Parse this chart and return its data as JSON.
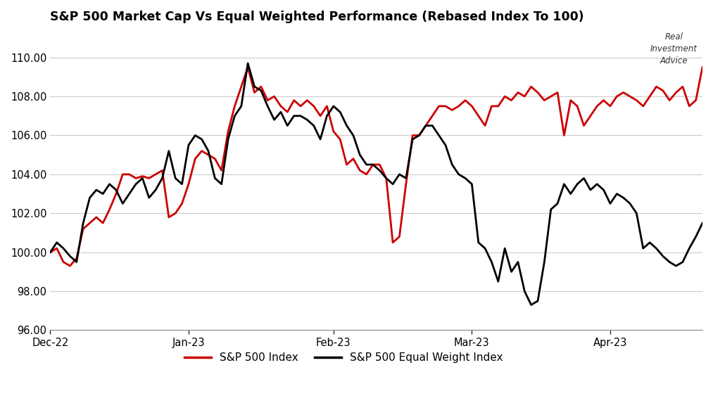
{
  "title": "S&P 500 Market Cap Vs Equal Weighted Performance (Rebased Index To 100)",
  "title_fontsize": 12.5,
  "background_color": "#ffffff",
  "grid_color": "#cccccc",
  "ylim": [
    96.0,
    111.5
  ],
  "yticks": [
    96.0,
    98.0,
    100.0,
    102.0,
    104.0,
    106.0,
    108.0,
    110.0
  ],
  "tick_fontsize": 10.5,
  "sp500_color": "#cc0000",
  "equal_weight_color": "#000000",
  "line_width": 2.0,
  "legend_labels": [
    "S&P 500 Index",
    "S&P 500 Equal Weight Index"
  ],
  "xtick_labels": [
    "Dec-22",
    "Jan-23",
    "Feb-23",
    "Mar-23",
    "Apr-23"
  ],
  "xtick_positions": [
    0,
    21,
    43,
    64,
    85
  ],
  "xlim_end": 99,
  "sp500": [
    100.0,
    100.2,
    99.5,
    99.3,
    99.7,
    101.2,
    101.5,
    101.8,
    101.5,
    102.2,
    103.0,
    104.0,
    104.0,
    103.8,
    103.9,
    103.8,
    104.0,
    104.2,
    101.8,
    102.0,
    102.5,
    103.5,
    104.8,
    105.2,
    105.0,
    104.8,
    104.2,
    106.2,
    107.5,
    108.5,
    109.5,
    108.2,
    108.5,
    107.8,
    108.0,
    107.5,
    107.2,
    107.8,
    107.5,
    107.8,
    107.5,
    107.0,
    107.5,
    106.2,
    105.8,
    104.5,
    104.8,
    104.2,
    104.0,
    104.5,
    104.5,
    103.8,
    100.5,
    100.8,
    103.5,
    106.0,
    106.0,
    106.5,
    107.0,
    107.5,
    107.5,
    107.3,
    107.5,
    107.8,
    107.5,
    107.0,
    106.5,
    107.5,
    107.5,
    108.0,
    107.8,
    108.2,
    108.0,
    108.5,
    108.2,
    107.8,
    108.0,
    108.2,
    106.0,
    107.8,
    107.5,
    106.5,
    107.0,
    107.5,
    107.8,
    107.5,
    108.0,
    108.2,
    108.0,
    107.8,
    107.5,
    108.0,
    108.5,
    108.3,
    107.8,
    108.2,
    108.5,
    107.5,
    107.8,
    109.5
  ],
  "equal_weight": [
    100.0,
    100.5,
    100.2,
    99.8,
    99.5,
    101.5,
    102.8,
    103.2,
    103.0,
    103.5,
    103.2,
    102.5,
    103.0,
    103.5,
    103.8,
    102.8,
    103.2,
    103.8,
    105.2,
    103.8,
    103.5,
    105.5,
    106.0,
    105.8,
    105.2,
    103.8,
    103.5,
    105.8,
    107.0,
    107.5,
    109.7,
    108.5,
    108.3,
    107.5,
    106.8,
    107.2,
    106.5,
    107.0,
    107.0,
    106.8,
    106.5,
    105.8,
    107.0,
    107.5,
    107.2,
    106.5,
    106.0,
    105.0,
    104.5,
    104.5,
    104.2,
    103.8,
    103.5,
    104.0,
    103.8,
    105.8,
    106.0,
    106.5,
    106.5,
    106.0,
    105.5,
    104.5,
    104.0,
    103.8,
    103.5,
    100.5,
    100.2,
    99.5,
    98.5,
    100.2,
    99.0,
    99.5,
    98.0,
    97.3,
    97.5,
    99.5,
    102.2,
    102.5,
    103.5,
    103.0,
    103.5,
    103.8,
    103.2,
    103.5,
    103.2,
    102.5,
    103.0,
    102.8,
    102.5,
    102.0,
    100.2,
    100.5,
    100.2,
    99.8,
    99.5,
    99.3,
    99.5,
    100.2,
    100.8,
    101.5
  ]
}
